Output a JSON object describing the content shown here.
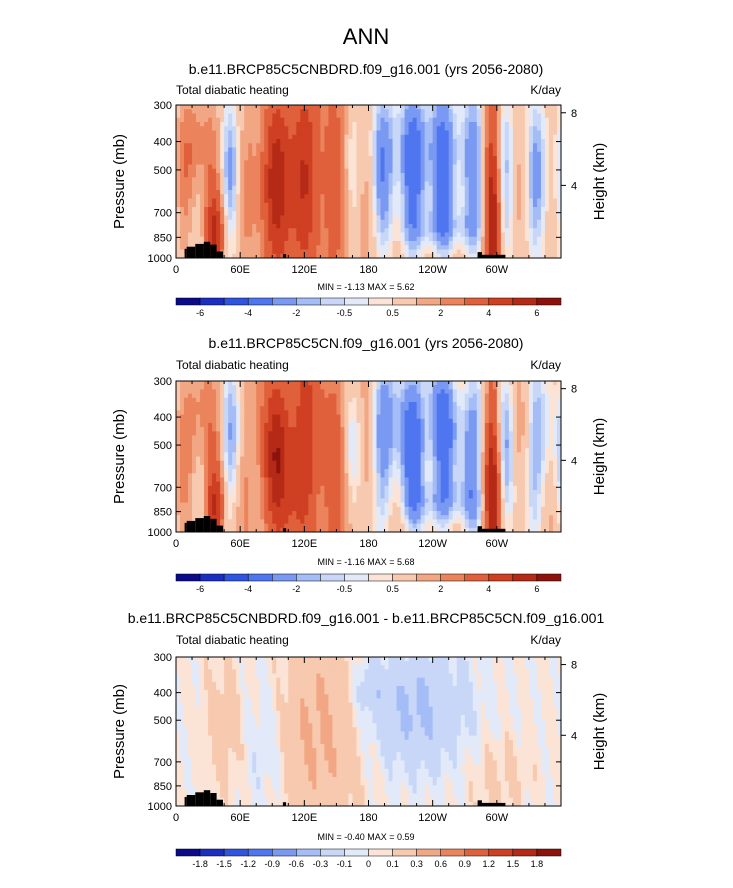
{
  "figure_title": "ANN",
  "colors": {
    "land": "#000000",
    "axis": "#000000",
    "levels_full": [
      "#0a0a8a",
      "#1a2fc2",
      "#2f55e0",
      "#4f76f0",
      "#7a99f2",
      "#a5bdf6",
      "#c8d7f8",
      "#e2eafa",
      "#fbe4d6",
      "#f7c9af",
      "#f2a784",
      "#eb845c",
      "#e0603c",
      "#cf3f22",
      "#b52a16",
      "#8c130c"
    ],
    "levels_diff": [
      "#0a0a8a",
      "#1a2fc2",
      "#2f55e0",
      "#4f76f0",
      "#7a99f2",
      "#a5bdf6",
      "#c8d7f8",
      "#e2eafa",
      "#fbe4d6",
      "#f7c9af",
      "#f2a784",
      "#eb845c",
      "#e0603c",
      "#cf3f22",
      "#b52a16",
      "#8c130c"
    ]
  },
  "chart_data": [
    {
      "type": "heatmap",
      "title": "b.e11.BRCP85C5CNBDRD.f09_g16.001 (yrs 2056-2080)",
      "left_label": "Total diabatic heating",
      "right_label": "K/day",
      "ylabel": "Pressure (mb)",
      "ylabel_right": "Height (km)",
      "yticks": [
        "300",
        "400",
        "500",
        "700",
        "850",
        "1000"
      ],
      "ytick_values": [
        300,
        400,
        500,
        700,
        850,
        1000
      ],
      "ylim": [
        1000,
        300
      ],
      "yticks_right": [
        "8",
        "4"
      ],
      "ytick_right_values": [
        8,
        4
      ],
      "xticks": [
        "0",
        "60E",
        "120E",
        "180",
        "120W",
        "60W"
      ],
      "xtick_values": [
        0,
        60,
        120,
        180,
        240,
        300
      ],
      "xlim": [
        0,
        360
      ],
      "min_max_text": "MIN = -1.13  MAX = 5.62",
      "colorbar_labels": [
        "-6",
        "-4",
        "-2",
        "-0.5",
        "0.5",
        "2",
        "4",
        "6"
      ],
      "field": "full"
    },
    {
      "type": "heatmap",
      "title": "b.e11.BRCP85C5CN.f09_g16.001 (yrs 2056-2080)",
      "left_label": "Total diabatic heating",
      "right_label": "K/day",
      "ylabel": "Pressure (mb)",
      "ylabel_right": "Height (km)",
      "yticks": [
        "300",
        "400",
        "500",
        "700",
        "850",
        "1000"
      ],
      "ytick_values": [
        300,
        400,
        500,
        700,
        850,
        1000
      ],
      "ylim": [
        1000,
        300
      ],
      "yticks_right": [
        "8",
        "4"
      ],
      "ytick_right_values": [
        8,
        4
      ],
      "xticks": [
        "0",
        "60E",
        "120E",
        "180",
        "120W",
        "60W"
      ],
      "xtick_values": [
        0,
        60,
        120,
        180,
        240,
        300
      ],
      "xlim": [
        0,
        360
      ],
      "min_max_text": "MIN = -1.16  MAX = 5.68",
      "colorbar_labels": [
        "-6",
        "-4",
        "-2",
        "-0.5",
        "0.5",
        "2",
        "4",
        "6"
      ],
      "field": "full"
    },
    {
      "type": "heatmap",
      "title": "b.e11.BRCP85C5CNBDRD.f09_g16.001 - b.e11.BRCP85C5CN.f09_g16.001",
      "left_label": "Total diabatic heating",
      "right_label": "K/day",
      "ylabel": "Pressure (mb)",
      "ylabel_right": "Height (km)",
      "yticks": [
        "300",
        "400",
        "500",
        "700",
        "850",
        "1000"
      ],
      "ytick_values": [
        300,
        400,
        500,
        700,
        850,
        1000
      ],
      "ylim": [
        1000,
        300
      ],
      "yticks_right": [
        "8",
        "4"
      ],
      "ytick_right_values": [
        8,
        4
      ],
      "xticks": [
        "0",
        "60E",
        "120E",
        "180",
        "120W",
        "60W"
      ],
      "xtick_values": [
        0,
        60,
        120,
        180,
        240,
        300
      ],
      "xlim": [
        0,
        360
      ],
      "min_max_text": "MIN = -0.40  MAX = 0.59",
      "colorbar_labels": [
        "-1.8",
        "-1.5",
        "-1.2",
        "-0.9",
        "-0.6",
        "-0.3",
        "-0.1",
        "0",
        "0.1",
        "0.3",
        "0.6",
        "0.9",
        "1.2",
        "1.5",
        "1.8"
      ],
      "field": "diff"
    }
  ]
}
